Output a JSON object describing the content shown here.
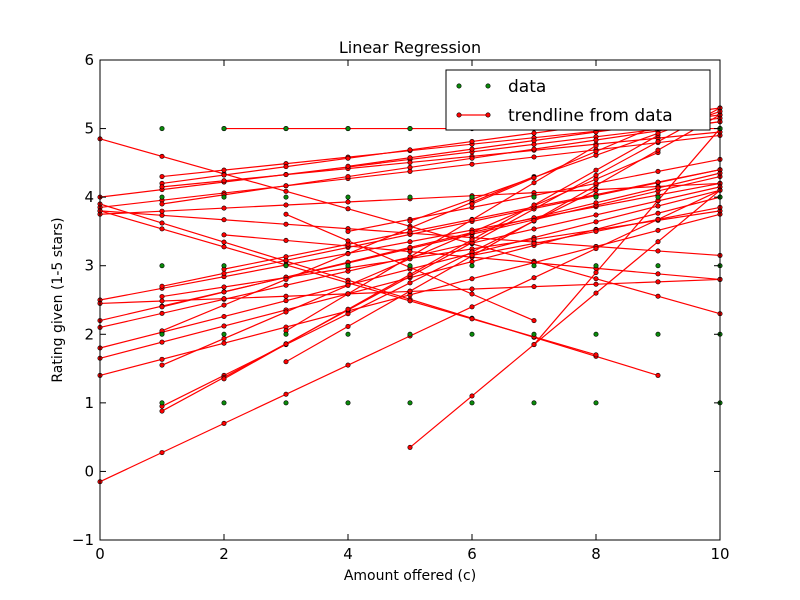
{
  "chart_data": {
    "type": "scatter",
    "title": "Linear Regression",
    "xlabel": "Amount offered (c)",
    "ylabel": "Rating given (1-5 stars)",
    "xlim": [
      0,
      10
    ],
    "ylim": [
      -1,
      6
    ],
    "xticks": [
      0,
      2,
      4,
      6,
      8,
      10
    ],
    "yticks": [
      -1,
      0,
      1,
      2,
      3,
      4,
      5,
      6
    ],
    "grid": false,
    "legend_position": "top-right",
    "colors": {
      "data": "#0a8a0a",
      "trend": "#ff0000",
      "marker_edge": "#000000"
    },
    "series": [
      {
        "name": "data",
        "kind": "points",
        "points": [
          [
            1,
            5
          ],
          [
            2,
            5
          ],
          [
            3,
            5
          ],
          [
            4,
            5
          ],
          [
            5,
            5
          ],
          [
            6,
            5
          ],
          [
            7,
            5
          ],
          [
            8,
            5
          ],
          [
            9,
            5
          ],
          [
            10,
            5
          ],
          [
            1,
            4
          ],
          [
            2,
            4
          ],
          [
            3,
            4
          ],
          [
            4,
            4
          ],
          [
            5,
            4
          ],
          [
            6,
            4
          ],
          [
            7,
            4
          ],
          [
            8,
            4
          ],
          [
            9,
            4
          ],
          [
            10,
            4
          ],
          [
            1,
            3
          ],
          [
            2,
            3
          ],
          [
            3,
            3
          ],
          [
            4,
            3
          ],
          [
            5,
            3
          ],
          [
            6,
            3
          ],
          [
            7,
            3
          ],
          [
            8,
            3
          ],
          [
            9,
            3
          ],
          [
            10,
            3
          ],
          [
            1,
            2
          ],
          [
            2,
            2
          ],
          [
            3,
            2
          ],
          [
            4,
            2
          ],
          [
            5,
            2
          ],
          [
            6,
            2
          ],
          [
            7,
            2
          ],
          [
            8,
            2
          ],
          [
            9,
            2
          ],
          [
            10,
            2
          ],
          [
            1,
            1
          ],
          [
            2,
            1
          ],
          [
            3,
            1
          ],
          [
            4,
            1
          ],
          [
            5,
            1
          ],
          [
            6,
            1
          ],
          [
            7,
            1
          ],
          [
            8,
            1
          ],
          [
            10,
            1
          ]
        ]
      },
      {
        "name": "trendline from data",
        "kind": "lines",
        "lines": [
          {
            "xs": [
              2,
              10
            ],
            "y0": 5.0,
            "y1": 5.0
          },
          {
            "xs": [
              0,
              10
            ],
            "y0": 4.85,
            "y1": 2.3
          },
          {
            "xs": [
              0,
              10
            ],
            "y0": 3.8,
            "y1": 3.15
          },
          {
            "xs": [
              0,
              10
            ],
            "y0": 3.75,
            "y1": 4.2
          },
          {
            "xs": [
              0,
              10
            ],
            "y0": 4.0,
            "y1": 5.1
          },
          {
            "xs": [
              0,
              10
            ],
            "y0": 3.85,
            "y1": 4.9
          },
          {
            "xs": [
              0,
              10
            ],
            "y0": 2.5,
            "y1": 4.2
          },
          {
            "xs": [
              0,
              10
            ],
            "y0": 2.1,
            "y1": 4.15
          },
          {
            "xs": [
              0,
              10
            ],
            "y0": 2.2,
            "y1": 4.3
          },
          {
            "xs": [
              0,
              10
            ],
            "y0": 1.8,
            "y1": 4.1
          },
          {
            "xs": [
              0,
              10
            ],
            "y0": 1.65,
            "y1": 4.0
          },
          {
            "xs": [
              0,
              10
            ],
            "y0": 1.4,
            "y1": 3.75
          },
          {
            "xs": [
              0,
              10
            ],
            "y0": -0.15,
            "y1": 4.1
          },
          {
            "xs": [
              0,
              9
            ],
            "y0": 3.9,
            "y1": 1.4
          },
          {
            "xs": [
              0,
              8
            ],
            "y0": 3.8,
            "y1": 1.7
          },
          {
            "xs": [
              0,
              10
            ],
            "y0": 2.45,
            "y1": 2.8
          },
          {
            "xs": [
              1,
              10
            ],
            "y0": 4.3,
            "y1": 5.15
          },
          {
            "xs": [
              1,
              10
            ],
            "y0": 4.2,
            "y1": 5.3
          },
          {
            "xs": [
              1,
              10
            ],
            "y0": 4.15,
            "y1": 4.95
          },
          {
            "xs": [
              1,
              10
            ],
            "y0": 3.9,
            "y1": 5.1
          },
          {
            "xs": [
              1,
              10
            ],
            "y0": 2.7,
            "y1": 4.4
          },
          {
            "xs": [
              1,
              10
            ],
            "y0": 2.55,
            "y1": 3.8
          },
          {
            "xs": [
              1,
              10
            ],
            "y0": 2.4,
            "y1": 4.35
          },
          {
            "xs": [
              1,
              7
            ],
            "y0": 2.05,
            "y1": 4.3
          },
          {
            "xs": [
              1,
              9
            ],
            "y0": 1.55,
            "y1": 4.65
          },
          {
            "xs": [
              1,
              8
            ],
            "y0": 0.95,
            "y1": 4.1
          },
          {
            "xs": [
              1,
              10
            ],
            "y0": 0.88,
            "y1": 5.3
          },
          {
            "xs": [
              2,
              10
            ],
            "y0": 3.45,
            "y1": 2.8
          },
          {
            "xs": [
              2,
              10
            ],
            "y0": 2.95,
            "y1": 4.4
          },
          {
            "xs": [
              2,
              9
            ],
            "y0": 1.35,
            "y1": 4.9
          },
          {
            "xs": [
              3,
              10
            ],
            "y0": 1.6,
            "y1": 5.2
          },
          {
            "xs": [
              3,
              8
            ],
            "y0": 2.05,
            "y1": 4.75
          },
          {
            "xs": [
              3,
              7
            ],
            "y0": 3.75,
            "y1": 2.2
          },
          {
            "xs": [
              4,
              10
            ],
            "y0": 4.45,
            "y1": 5.2
          },
          {
            "xs": [
              4,
              10
            ],
            "y0": 3.5,
            "y1": 4.55
          },
          {
            "xs": [
              5,
              10
            ],
            "y0": 0.35,
            "y1": 4.1
          },
          {
            "xs": [
              5,
              10
            ],
            "y0": 3.65,
            "y1": 5.25
          },
          {
            "xs": [
              6,
              9
            ],
            "y0": 3.9,
            "y1": 5.05
          },
          {
            "xs": [
              7,
              10
            ],
            "y0": 1.85,
            "y1": 5.0
          },
          {
            "xs": [
              6,
              10
            ],
            "y0": 3.15,
            "y1": 3.85
          }
        ]
      }
    ]
  }
}
